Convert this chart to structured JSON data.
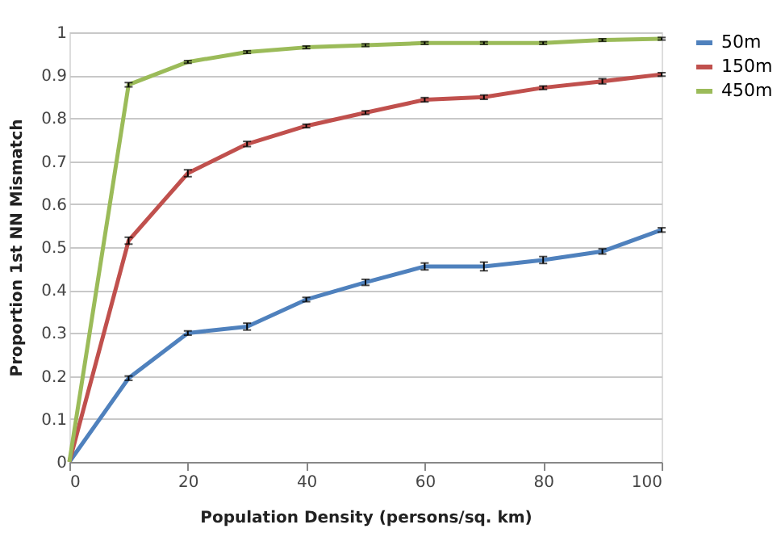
{
  "chart_data": {
    "type": "line",
    "xlabel": "Population Density (persons/sq. km)",
    "ylabel": "Proportion 1st NN Mismatch",
    "x": [
      0,
      10,
      20,
      30,
      40,
      50,
      60,
      70,
      80,
      90,
      100
    ],
    "series": [
      {
        "name": "50m",
        "color": "#4f81bd",
        "values": [
          0,
          0.195,
          0.3,
          0.315,
          0.378,
          0.418,
          0.455,
          0.455,
          0.47,
          0.49,
          0.54
        ],
        "errors": [
          null,
          0.005,
          0.005,
          0.008,
          0.005,
          0.007,
          0.008,
          0.01,
          0.008,
          0.006,
          0.005
        ]
      },
      {
        "name": "150m",
        "color": "#c0504d",
        "values": [
          0,
          0.515,
          0.672,
          0.74,
          0.782,
          0.813,
          0.843,
          0.849,
          0.871,
          0.886,
          0.902
        ],
        "errors": [
          null,
          0.008,
          0.008,
          0.006,
          0.004,
          0.004,
          0.005,
          0.005,
          0.004,
          0.006,
          0.004
        ]
      },
      {
        "name": "450m",
        "color": "#9bbb59",
        "values": [
          0,
          0.878,
          0.931,
          0.954,
          0.965,
          0.97,
          0.975,
          0.975,
          0.975,
          0.982,
          0.985
        ],
        "errors": [
          null,
          0.005,
          0.003,
          0.003,
          0.003,
          0.003,
          0.003,
          0.003,
          0.003,
          0.003,
          0.003
        ]
      }
    ],
    "xlim": [
      0,
      100
    ],
    "xticks": [
      0,
      20,
      40,
      60,
      80,
      100
    ],
    "ylim": [
      0,
      1
    ],
    "yticks": [
      0,
      0.1,
      0.2,
      0.3,
      0.4,
      0.5,
      0.6,
      0.7,
      0.8,
      0.9,
      1
    ],
    "grid": "y",
    "legend": "right",
    "marker": "none",
    "line_style": "solid"
  }
}
